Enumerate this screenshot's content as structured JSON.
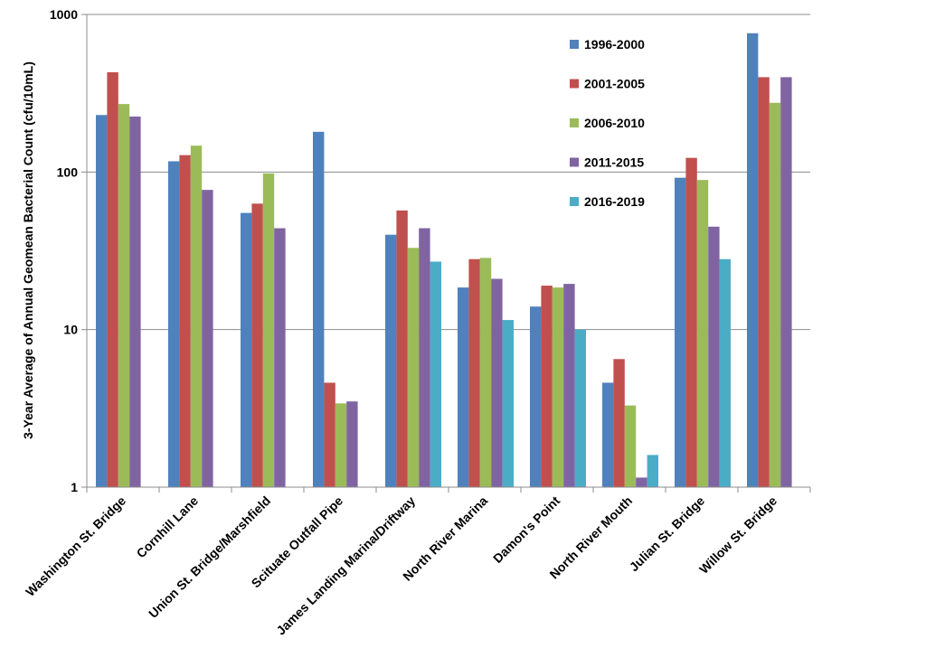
{
  "chart_data": {
    "type": "bar",
    "ylabel": "3-Year Average of Annual Geomean Bacterial Count (cfu/10mL)",
    "xlabel": "",
    "yscale": "log",
    "ylim": [
      1,
      1000
    ],
    "yticks": [
      "1",
      "10",
      "100",
      "1000"
    ],
    "grid": true,
    "legend_position": "top-right",
    "categories": [
      "Washington St. Bridge",
      "Cornhill Lane",
      "Union St. Bridge/Marshfield",
      "Scituate Outfall Pipe",
      "James Landing Marina/Driftway",
      "North River Marina",
      "Damon's Point",
      "North River Mouth",
      "Julian St. Bridge",
      "Willow St. Bridge"
    ],
    "series": [
      {
        "name": "1996-2000",
        "color": "#4F81BD",
        "values": [
          230,
          117,
          55,
          180,
          40,
          18.5,
          14,
          4.6,
          92,
          760
        ]
      },
      {
        "name": "2001-2005",
        "color": "#C0504D",
        "values": [
          430,
          128,
          63,
          4.6,
          57,
          28,
          19,
          6.5,
          123,
          400
        ]
      },
      {
        "name": "2006-2010",
        "color": "#9BBB59",
        "values": [
          270,
          147,
          98,
          3.4,
          33,
          28.5,
          18.5,
          3.3,
          89,
          275
        ]
      },
      {
        "name": "2011-2015",
        "color": "#8064A2",
        "values": [
          225,
          77,
          44,
          3.5,
          44,
          21,
          19.5,
          1.15,
          45,
          400
        ]
      },
      {
        "name": "2016-2019",
        "color": "#4BACC6",
        "values": [
          null,
          null,
          null,
          null,
          27,
          11.5,
          10,
          1.6,
          28,
          null
        ]
      }
    ]
  }
}
